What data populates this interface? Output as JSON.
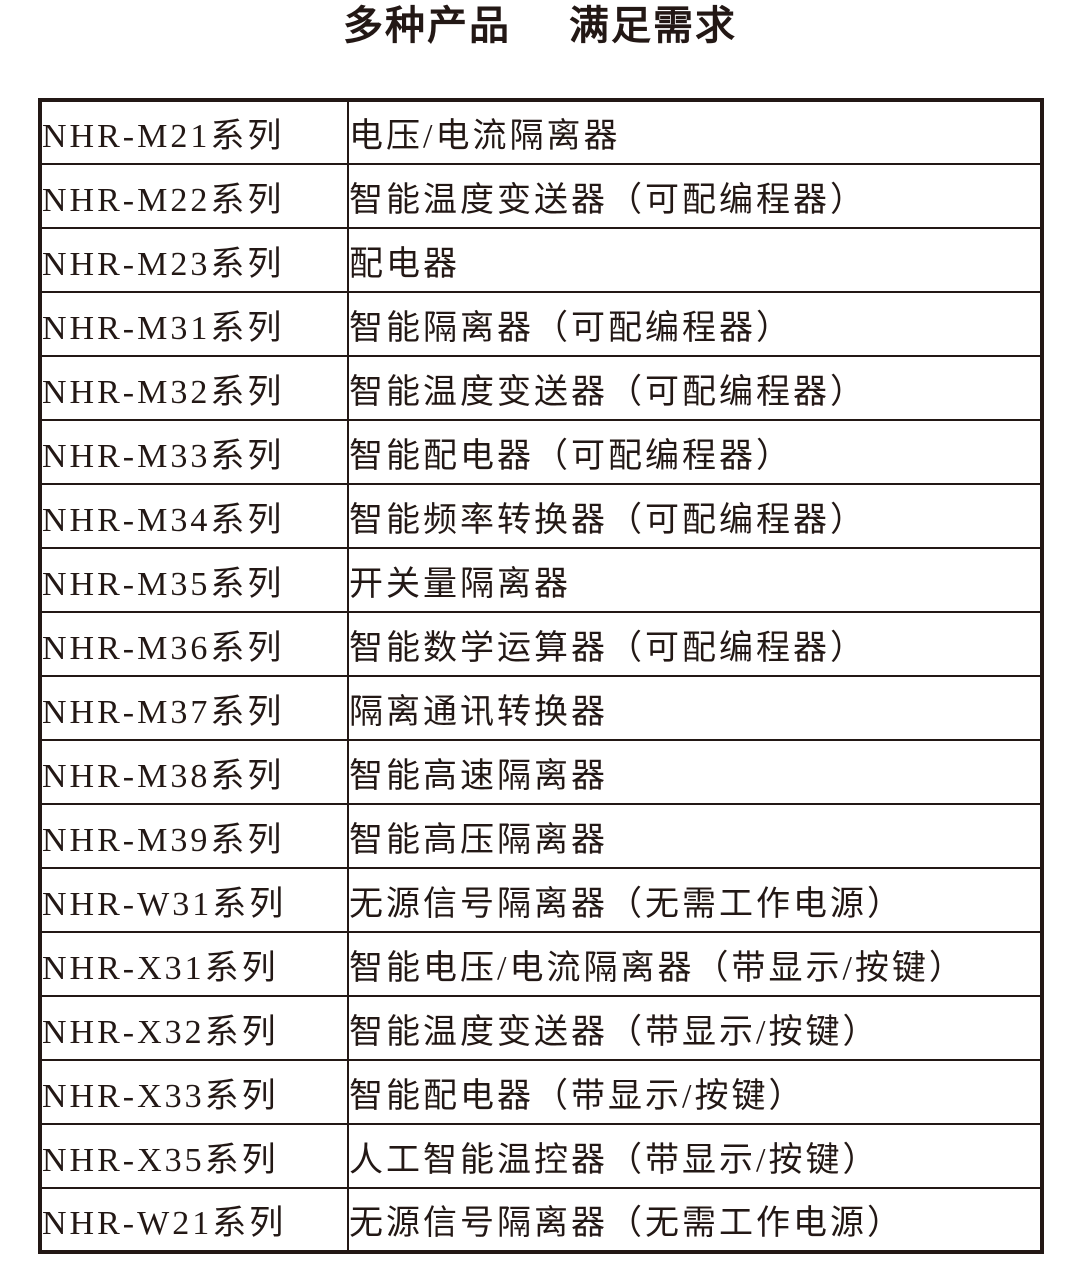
{
  "page": {
    "title": {
      "part1": "多种产品",
      "part2": "满足需求"
    }
  },
  "colors": {
    "text": "#231815",
    "border": "#231815",
    "background": "#ffffff"
  },
  "table": {
    "columns": [
      "series",
      "description"
    ],
    "rows": [
      {
        "series": "NHR-M21系列",
        "description": "电压/电流隔离器"
      },
      {
        "series": "NHR-M22系列",
        "description": "智能温度变送器（可配编程器）"
      },
      {
        "series": "NHR-M23系列",
        "description": "配电器"
      },
      {
        "series": "NHR-M31系列",
        "description": "智能隔离器（可配编程器）"
      },
      {
        "series": "NHR-M32系列",
        "description": "智能温度变送器（可配编程器）"
      },
      {
        "series": "NHR-M33系列",
        "description": "智能配电器（可配编程器）"
      },
      {
        "series": "NHR-M34系列",
        "description": "智能频率转换器（可配编程器）"
      },
      {
        "series": "NHR-M35系列",
        "description": "开关量隔离器"
      },
      {
        "series": "NHR-M36系列",
        "description": "智能数学运算器（可配编程器）"
      },
      {
        "series": "NHR-M37系列",
        "description": "隔离通讯转换器"
      },
      {
        "series": "NHR-M38系列",
        "description": "智能高速隔离器"
      },
      {
        "series": "NHR-M39系列",
        "description": "智能高压隔离器"
      },
      {
        "series": "NHR-W31系列",
        "description": "无源信号隔离器（无需工作电源）"
      },
      {
        "series": "NHR-X31系列",
        "description": "智能电压/电流隔离器（带显示/按键）"
      },
      {
        "series": "NHR-X32系列",
        "description": "智能温度变送器（带显示/按键）"
      },
      {
        "series": "NHR-X33系列",
        "description": "智能配电器（带显示/按键）"
      },
      {
        "series": "NHR-X35系列",
        "description": "人工智能温控器（带显示/按键）"
      },
      {
        "series": "NHR-W21系列",
        "description": "无源信号隔离器（无需工作电源）"
      }
    ]
  }
}
